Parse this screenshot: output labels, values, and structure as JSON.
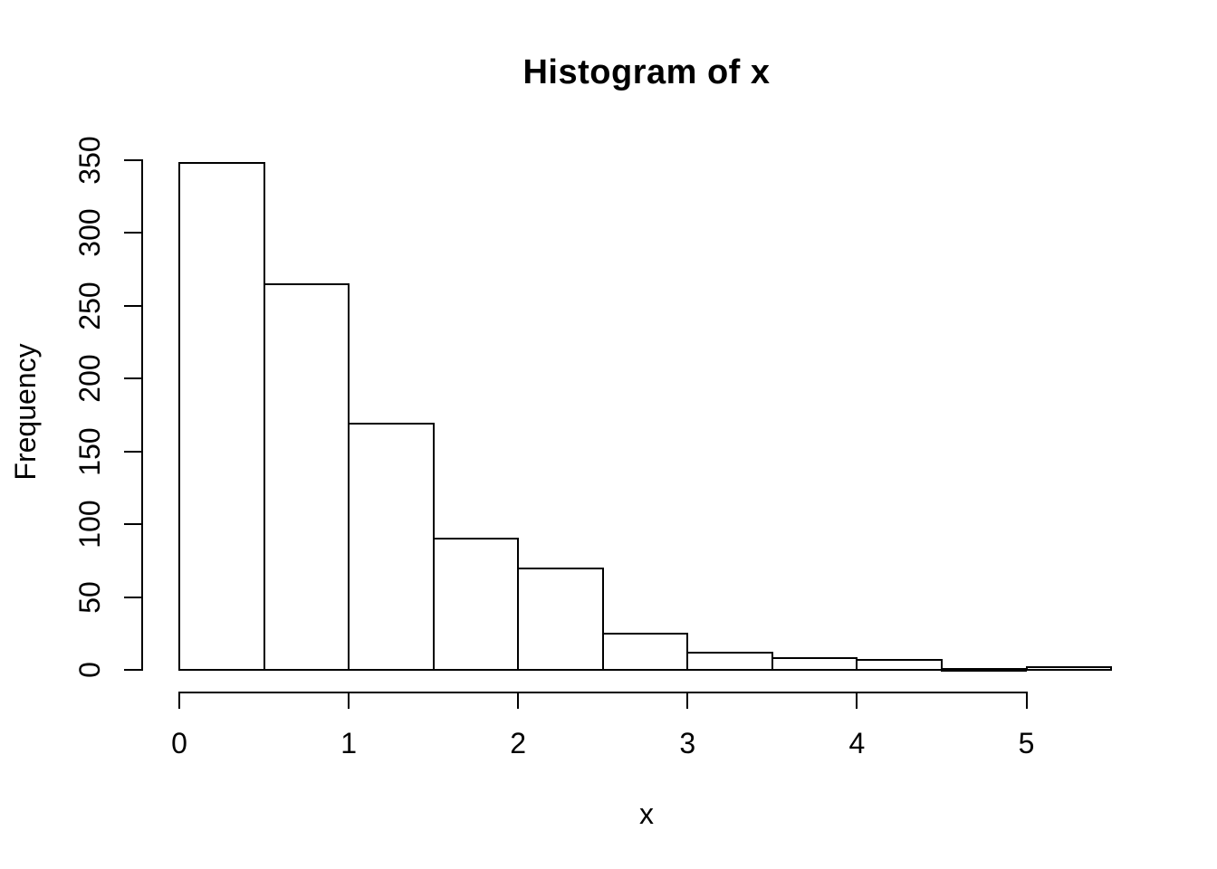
{
  "figure": {
    "background": "#ffffff",
    "foreground": "#000000"
  },
  "chart_data": {
    "type": "bar",
    "subtype": "histogram",
    "title": "Histogram of x",
    "xlabel": "x",
    "ylabel": "Frequency",
    "bin_edges": [
      0,
      0.5,
      1,
      1.5,
      2,
      2.5,
      3,
      3.5,
      4,
      4.5,
      5,
      5.5
    ],
    "counts": [
      348,
      265,
      169,
      90,
      70,
      25,
      12,
      8,
      7,
      1,
      2
    ],
    "x_ticks": [
      0,
      1,
      2,
      3,
      4,
      5
    ],
    "y_ticks": [
      0,
      50,
      100,
      150,
      200,
      250,
      300,
      350
    ],
    "xlim": [
      0,
      5.5
    ],
    "ylim": [
      0,
      350
    ],
    "grid": false,
    "legend": false,
    "bar_fill": "#ffffff",
    "bar_stroke": "#000000",
    "axis_color": "#000000"
  }
}
